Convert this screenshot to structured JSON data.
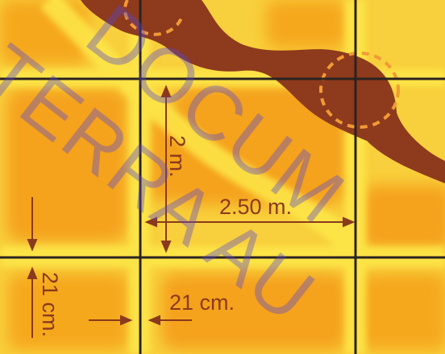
{
  "dimensions": {
    "width_label": "2.50 m.",
    "height_label": "2 m.",
    "gap_horizontal_label": "21 cm.",
    "gap_vertical_label": "21 cm."
  },
  "watermark": {
    "line1": "DOCUM",
    "line2": "TERRA AU"
  },
  "colors": {
    "heatmap_hot": "#f6a41e",
    "heatmap_glow": "#fbe23a",
    "root_mass": "#8e3a1c",
    "grid_line": "#2b2320",
    "dimension_ink": "#8a3a1c",
    "watermark": "#5846d2"
  }
}
